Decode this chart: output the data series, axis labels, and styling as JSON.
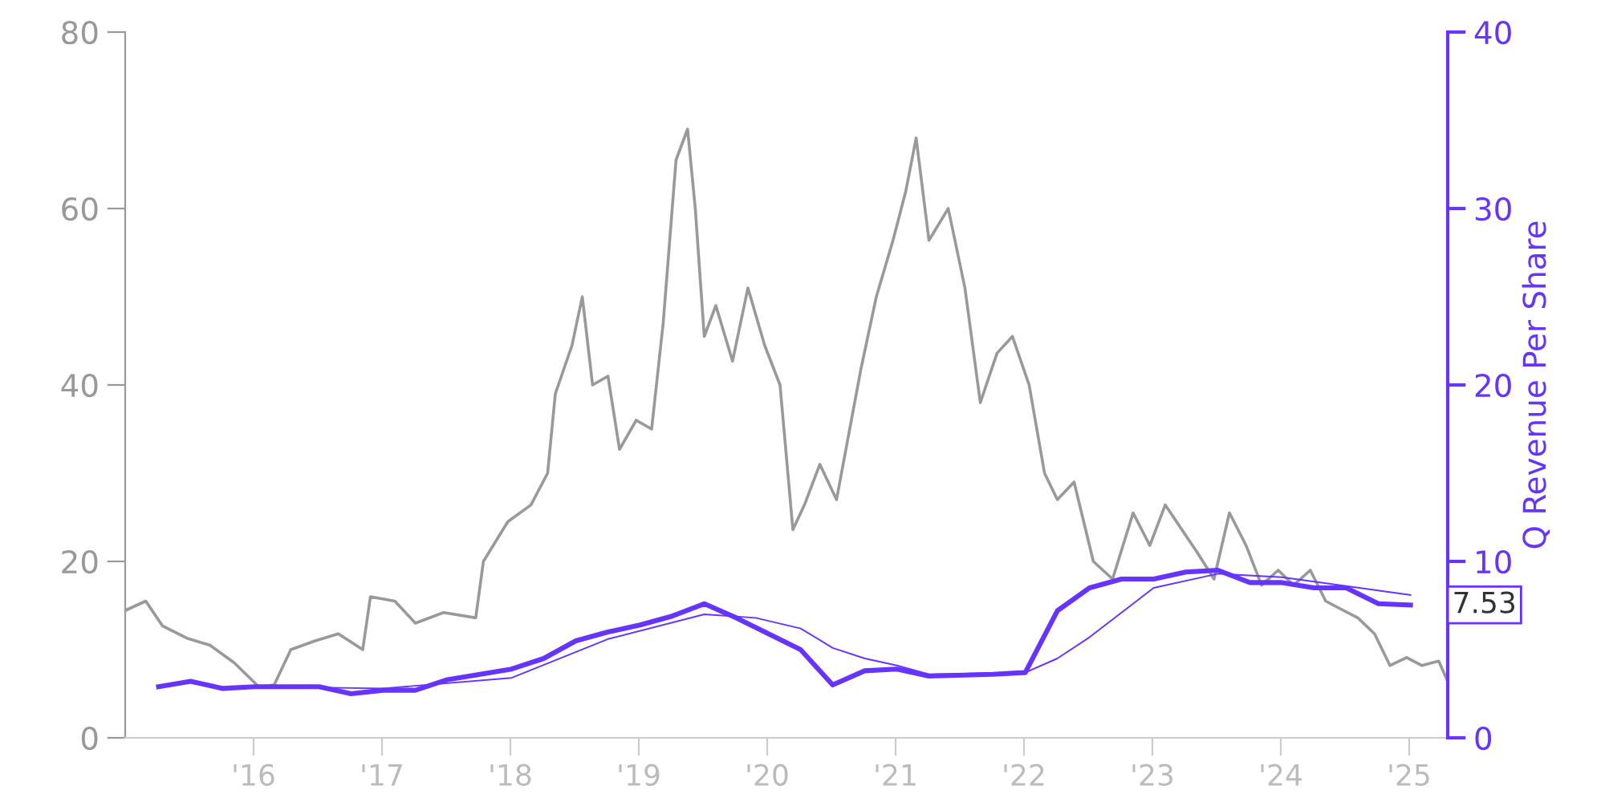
{
  "chart_data": {
    "type": "line",
    "y2label": "Q Revenue Per Share",
    "xlim": [
      2015.0,
      2025.3
    ],
    "xticks": [
      {
        "value": 2016,
        "label": "'16"
      },
      {
        "value": 2017,
        "label": "'17"
      },
      {
        "value": 2018,
        "label": "'18"
      },
      {
        "value": 2019,
        "label": "'19"
      },
      {
        "value": 2020,
        "label": "'20"
      },
      {
        "value": 2021,
        "label": "'21"
      },
      {
        "value": 2022,
        "label": "'22"
      },
      {
        "value": 2023,
        "label": "'23"
      },
      {
        "value": 2024,
        "label": "'24"
      },
      {
        "value": 2025,
        "label": "'25"
      }
    ],
    "ylim": [
      0,
      80
    ],
    "yticks": [
      0,
      20,
      40,
      60,
      80
    ],
    "y2lim": [
      0,
      40
    ],
    "y2ticks": [
      0,
      10,
      20,
      30,
      40
    ],
    "grid": false,
    "legend": false,
    "series": [
      {
        "color": "#999999",
        "x": [
          2015.01,
          2015.16,
          2015.29,
          2015.48,
          2015.66,
          2015.85,
          2016.04,
          2016.16,
          2016.29,
          2016.48,
          2016.66,
          2016.85,
          2016.91,
          2017.1,
          2017.26,
          2017.48,
          2017.73,
          2017.79,
          2017.98,
          2018.16,
          2018.29,
          2018.35,
          2018.48,
          2018.56,
          2018.64,
          2018.76,
          2018.85,
          2018.98,
          2019.1,
          2019.19,
          2019.29,
          2019.38,
          2019.44,
          2019.51,
          2019.6,
          2019.73,
          2019.85,
          2019.98,
          2020.1,
          2020.2,
          2020.29,
          2020.41,
          2020.54,
          2020.73,
          2020.85,
          2020.98,
          2021.08,
          2021.16,
          2021.26,
          2021.41,
          2021.54,
          2021.66,
          2021.79,
          2021.91,
          2022.04,
          2022.16,
          2022.26,
          2022.39,
          2022.54,
          2022.69,
          2022.85,
          2022.98,
          2023.1,
          2023.23,
          2023.35,
          2023.48,
          2023.6,
          2023.73,
          2023.85,
          2023.98,
          2024.1,
          2024.23,
          2024.35,
          2024.48,
          2024.6,
          2024.73,
          2024.85,
          2024.98,
          2025.1,
          2025.23,
          2025.3
        ],
        "values": [
          14.5,
          15.5,
          12.7,
          11.3,
          10.5,
          8.5,
          5.8,
          6,
          10,
          11,
          11.8,
          10,
          16,
          15.5,
          13,
          14.2,
          13.6,
          20,
          24.5,
          26.4,
          30,
          39,
          44.5,
          50,
          40,
          41,
          32.7,
          36,
          35,
          47,
          65.5,
          69,
          60,
          45.5,
          49,
          42.7,
          51,
          44.5,
          40,
          23.6,
          26.4,
          31,
          27,
          41.8,
          50,
          56.4,
          62,
          68,
          56.4,
          60,
          51,
          38,
          43.6,
          45.5,
          40,
          30,
          27,
          29,
          20,
          18,
          25.5,
          21.8,
          26.4,
          23.6,
          21,
          18,
          25.5,
          21.8,
          17.3,
          19,
          17.3,
          19,
          15.5,
          14.5,
          13.6,
          11.8,
          8.2,
          9.1,
          8.2,
          8.7,
          6.4
        ]
      },
      {
        "color": "#6633ff",
        "axis": "y2",
        "x": [
          2015.26,
          2015.51,
          2015.76,
          2016.01,
          2016.51,
          2016.76,
          2017.01,
          2017.26,
          2017.51,
          2018.01,
          2018.26,
          2018.51,
          2018.76,
          2019.01,
          2019.26,
          2019.51,
          2019.76,
          2020.01,
          2020.26,
          2020.51,
          2020.76,
          2021.01,
          2021.26,
          2021.76,
          2022.01,
          2022.26,
          2022.51,
          2022.76,
          2023.01,
          2023.26,
          2023.51,
          2023.76,
          2024.01,
          2024.26,
          2024.51,
          2024.76,
          2025.01
        ],
        "values": [
          2.9,
          3.2,
          2.8,
          2.9,
          2.9,
          2.5,
          2.7,
          2.7,
          3.3,
          3.9,
          4.5,
          5.5,
          6,
          6.4,
          6.9,
          7.6,
          6.8,
          5.9,
          5,
          3,
          3.8,
          3.9,
          3.5,
          3.6,
          3.7,
          7.2,
          8.5,
          9,
          9,
          9.4,
          9.5,
          8.8,
          8.8,
          8.5,
          8.5,
          7.6,
          7.53
        ]
      },
      {
        "color": "#6633ff",
        "axis": "y2",
        "x": [
          2016.01,
          2017.01,
          2018.01,
          2018.76,
          2019.51,
          2019.91,
          2020.26,
          2020.51,
          2020.76,
          2021.01,
          2021.26,
          2022.01,
          2022.26,
          2022.51,
          2023.01,
          2023.51,
          2024.01,
          2024.51,
          2025.01
        ],
        "values": [
          2.9,
          2.8,
          3.4,
          5.6,
          7,
          6.8,
          6.2,
          5.1,
          4.5,
          4.1,
          3.6,
          3.7,
          4.5,
          5.7,
          8.5,
          9.3,
          9.1,
          8.6,
          8.1
        ]
      }
    ],
    "annotations": [
      {
        "text": "7.53",
        "x": 2025.3,
        "y": 7.53
      }
    ]
  }
}
